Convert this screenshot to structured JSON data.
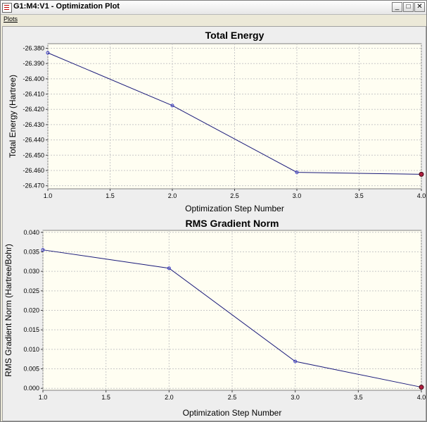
{
  "window": {
    "title": "G1:M4:V1 - Optimization Plot",
    "minimize_glyph": "_",
    "restore_glyph": "□",
    "close_glyph": "✕"
  },
  "menu": {
    "items": [
      "Plots"
    ]
  },
  "chart_data": [
    {
      "type": "line",
      "title": "Total Energy",
      "xlabel": "Optimization Step Number",
      "ylabel": "Total Energy (Hartree)",
      "x": [
        1,
        2,
        3,
        4
      ],
      "y": [
        -26.383,
        -26.4175,
        -26.4612,
        -26.4625
      ],
      "xlim": [
        1.0,
        4.0
      ],
      "ylim": [
        -26.472,
        -26.377
      ],
      "xticks": [
        "1.0",
        "1.5",
        "2.0",
        "2.5",
        "3.0",
        "3.5",
        "4.0"
      ],
      "yticks": [
        "-26.380",
        "-26.390",
        "-26.400",
        "-26.410",
        "-26.420",
        "-26.430",
        "-26.440",
        "-26.450",
        "-26.460",
        "-26.470"
      ],
      "grid": true,
      "highlight_last": true
    },
    {
      "type": "line",
      "title": "RMS Gradient Norm",
      "xlabel": "Optimization Step Number",
      "ylabel": "RMS Gradient Norm (Hartree/Bohr)",
      "x": [
        1,
        2,
        3,
        4
      ],
      "y": [
        0.0355,
        0.0308,
        0.0069,
        0.0003
      ],
      "xlim": [
        1.0,
        4.0
      ],
      "ylim": [
        -0.0005,
        0.0405
      ],
      "xticks": [
        "1.0",
        "1.5",
        "2.0",
        "2.5",
        "3.0",
        "3.5",
        "4.0"
      ],
      "yticks": [
        "0.040",
        "0.035",
        "0.030",
        "0.025",
        "0.020",
        "0.015",
        "0.010",
        "0.005",
        "0.000"
      ],
      "grid": true,
      "highlight_last": true
    }
  ],
  "colors": {
    "plot_bg": "#fffef2",
    "grid": "#c8c8c8",
    "line": "#1a1a7a",
    "marker": "#3a3ac8",
    "highlight": "#b02040"
  }
}
